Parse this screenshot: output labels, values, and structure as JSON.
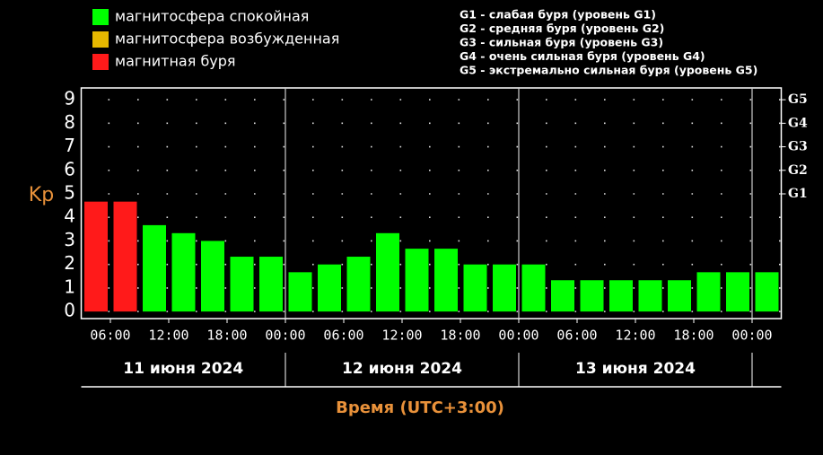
{
  "chart_data": {
    "type": "bar",
    "legend": [
      {
        "label": "магнитосфера спокойная",
        "color": "#00ff00"
      },
      {
        "label": "магнитосфера возбужденная",
        "color": "#e6b800"
      },
      {
        "label": "магнитная буря",
        "color": "#ff1a1a"
      }
    ],
    "storm_levels": [
      "G1 - слабая буря (уровень G1)",
      "G2 - средняя буря (уровень G2)",
      "G3 - сильная буря (уровень G3)",
      "G4 - очень сильная буря (уровень G4)",
      "G5 - экстремально сильная буря (уровень G5)"
    ],
    "y_label": "Kp",
    "x_label": "Время (UTC+3:00)",
    "x": [
      3,
      6,
      9,
      12,
      15,
      18,
      21,
      24,
      27,
      30,
      33,
      36,
      39,
      42,
      45,
      48,
      51,
      54,
      57,
      60,
      63,
      66,
      69,
      72
    ],
    "values": [
      4.67,
      4.67,
      3.67,
      3.33,
      3.0,
      2.33,
      2.33,
      1.67,
      2.0,
      2.33,
      3.33,
      2.67,
      2.67,
      2.0,
      2.0,
      2.0,
      1.33,
      1.33,
      1.33,
      1.33,
      1.33,
      1.67,
      1.67,
      1.67
    ],
    "colors": [
      "#ff1a1a",
      "#ff1a1a",
      "#00ff00",
      "#00ff00",
      "#00ff00",
      "#00ff00",
      "#00ff00",
      "#00ff00",
      "#00ff00",
      "#00ff00",
      "#00ff00",
      "#00ff00",
      "#00ff00",
      "#00ff00",
      "#00ff00",
      "#00ff00",
      "#00ff00",
      "#00ff00",
      "#00ff00",
      "#00ff00",
      "#00ff00",
      "#00ff00",
      "#00ff00",
      "#00ff00"
    ],
    "xlim": [
      3,
      75
    ],
    "xticks": [
      {
        "value": 6,
        "label": "06:00"
      },
      {
        "value": 12,
        "label": "12:00"
      },
      {
        "value": 18,
        "label": "18:00"
      },
      {
        "value": 24,
        "label": "00:00"
      },
      {
        "value": 30,
        "label": "06:00"
      },
      {
        "value": 36,
        "label": "12:00"
      },
      {
        "value": 42,
        "label": "18:00"
      },
      {
        "value": 48,
        "label": "00:00"
      },
      {
        "value": 54,
        "label": "06:00"
      },
      {
        "value": 60,
        "label": "12:00"
      },
      {
        "value": 66,
        "label": "18:00"
      },
      {
        "value": 72,
        "label": "00:00"
      }
    ],
    "days": [
      "11 июня 2024",
      "12 июня 2024",
      "13 июня 2024"
    ],
    "ylim": [
      -0.3,
      9.5
    ],
    "yticks": [
      0,
      1,
      2,
      3,
      4,
      5,
      6,
      7,
      8,
      9
    ],
    "y2ticks": [
      {
        "value": 5,
        "label": "G1"
      },
      {
        "value": 6,
        "label": "G2"
      },
      {
        "value": 7,
        "label": "G3"
      },
      {
        "value": 8,
        "label": "G4"
      },
      {
        "value": 9,
        "label": "G5"
      }
    ],
    "grid": true
  }
}
